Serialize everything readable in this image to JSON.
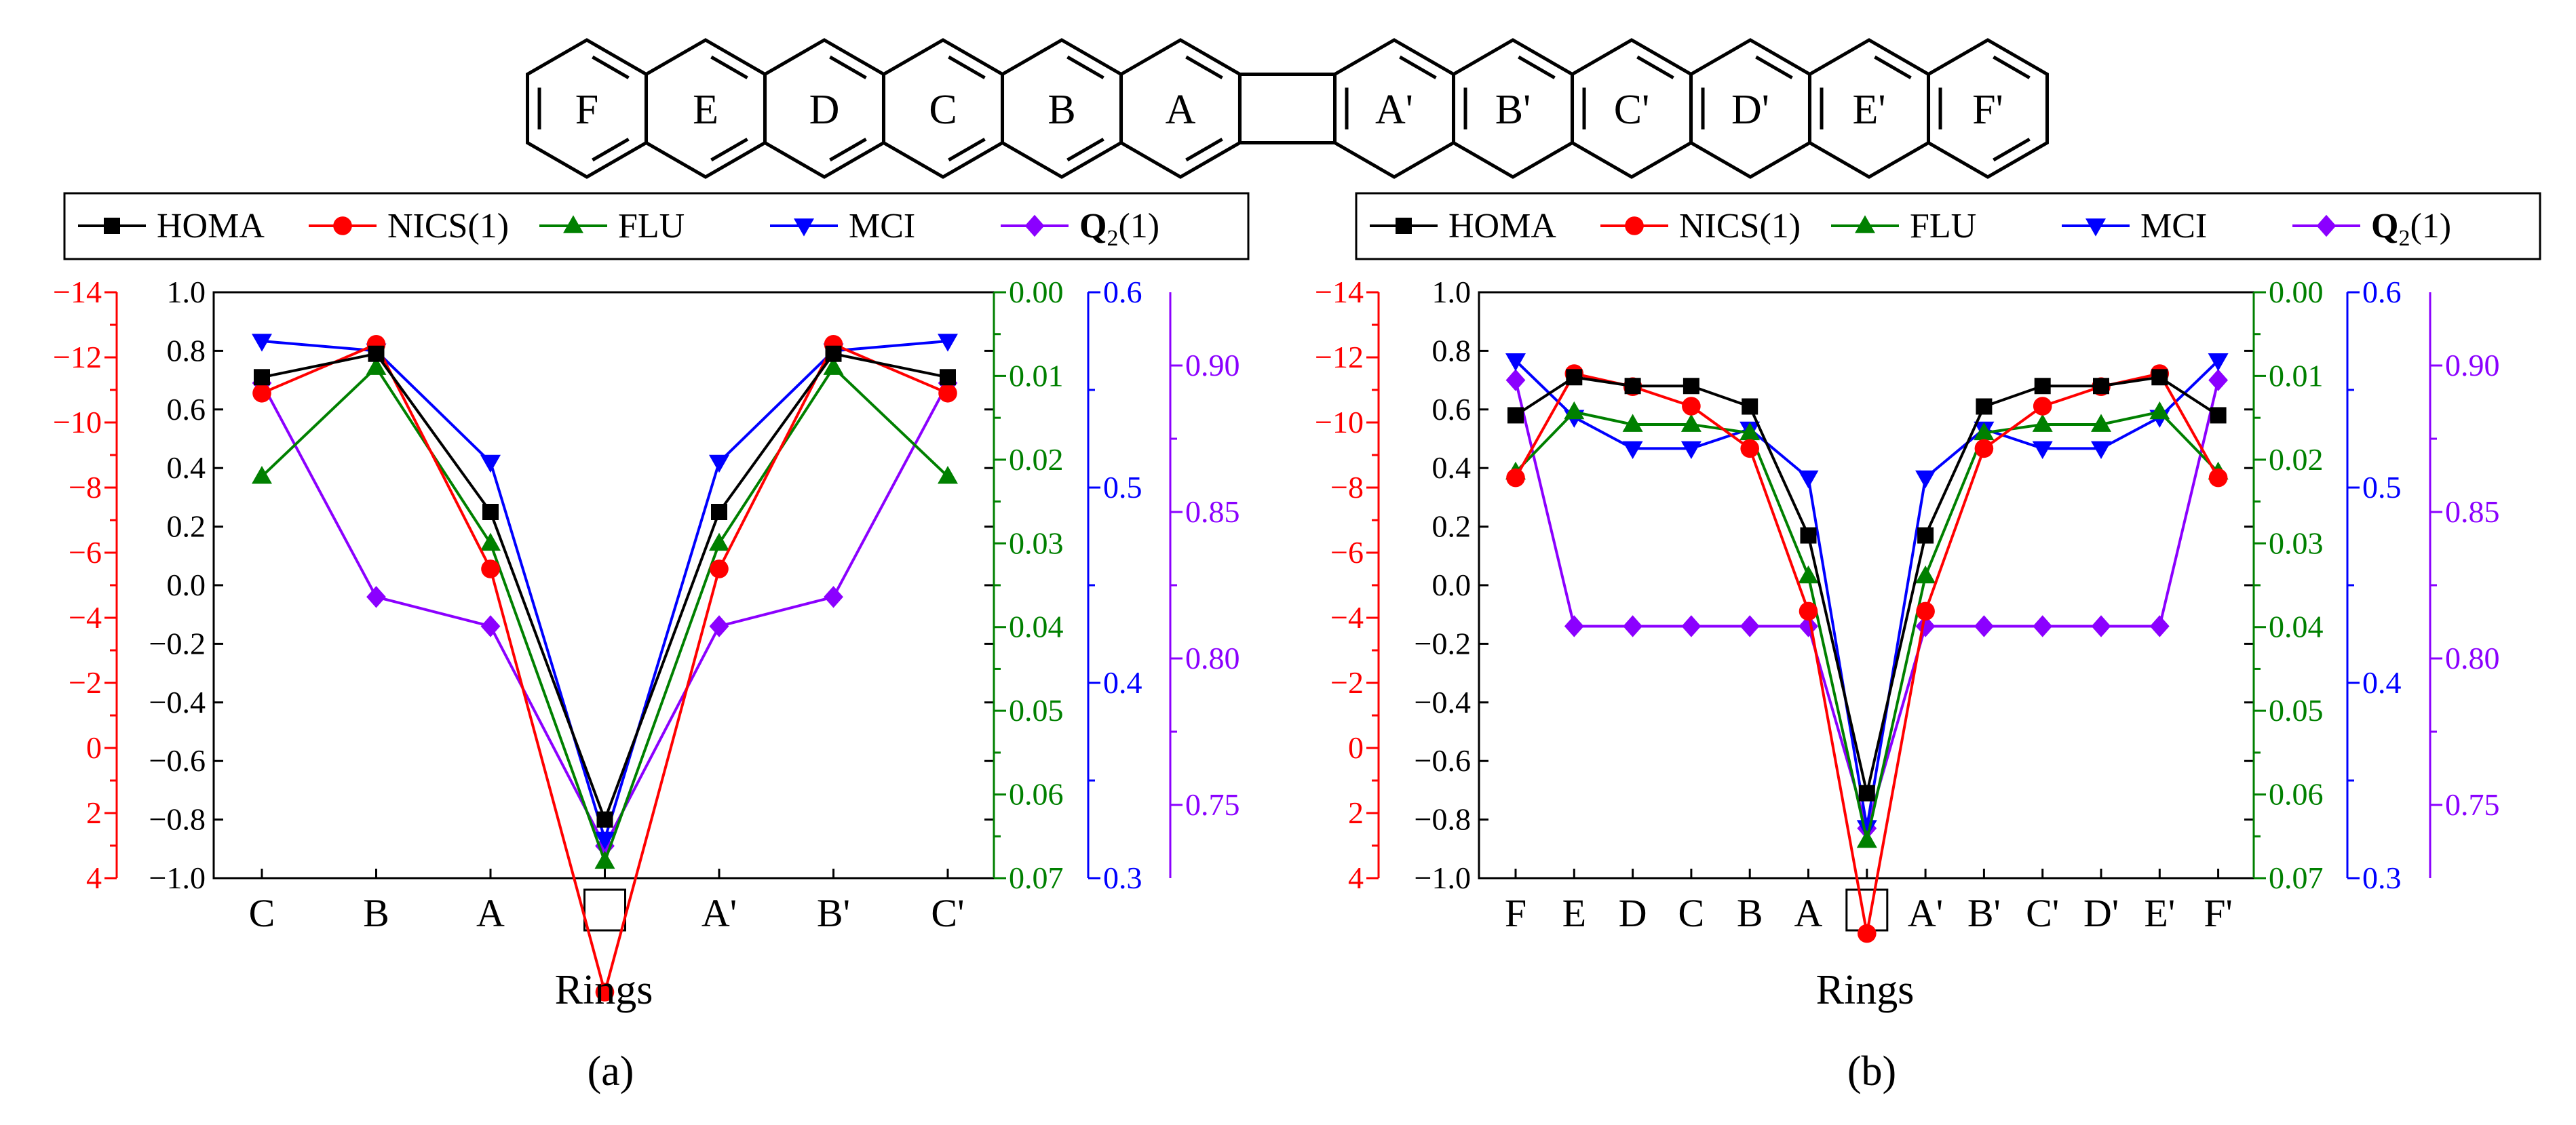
{
  "molecule": {
    "rings_left": [
      "F",
      "E",
      "D",
      "C",
      "B",
      "A"
    ],
    "rings_right": [
      "A'",
      "B'",
      "C'",
      "D'",
      "E'",
      "F'"
    ]
  },
  "colors": {
    "HOMA": "#000000",
    "NICS(1)": "#ff0000",
    "FLU": "#008000",
    "MCI": "#0000ff",
    "Q2(1)": "#8b00ff"
  },
  "legend_items": [
    {
      "key": "HOMA",
      "label": "HOMA",
      "marker": "square"
    },
    {
      "key": "NICS(1)",
      "label": "NICS(1)",
      "marker": "circle"
    },
    {
      "key": "FLU",
      "label": "FLU",
      "marker": "triangle-up"
    },
    {
      "key": "MCI",
      "label": "MCI",
      "marker": "triangle-down"
    },
    {
      "key": "Q2(1)",
      "label": "Q",
      "sub": "2",
      "suffix": "(1)",
      "marker": "diamond"
    }
  ],
  "chart_data": [
    {
      "type": "line",
      "panel_label": "(a)",
      "xlabel": "Rings",
      "categories": [
        "C",
        "B",
        "A",
        "□",
        "A'",
        "B'",
        "C'"
      ],
      "axes": {
        "NICS(1)": {
          "range": [
            4,
            -14
          ],
          "ticks": [
            "4",
            "2",
            "0",
            "−2",
            "−4",
            "−6",
            "−8",
            "−10",
            "−12",
            "−14"
          ]
        },
        "HOMA": {
          "range": [
            -1.0,
            1.0
          ],
          "ticks": [
            "−1.0",
            "−0.8",
            "−0.6",
            "−0.4",
            "−0.2",
            "0.0",
            "0.2",
            "0.4",
            "0.6",
            "0.8",
            "1.0"
          ]
        },
        "FLU": {
          "range": [
            0.07,
            0.0
          ],
          "ticks": [
            "0.07",
            "0.06",
            "0.05",
            "0.04",
            "0.03",
            "0.02",
            "0.01",
            "0.00"
          ]
        },
        "MCI": {
          "range": [
            0.3,
            0.6
          ],
          "ticks": [
            "0.3",
            "0.4",
            "0.5",
            "0.6"
          ]
        },
        "Q2(1)": {
          "range": [
            0.725,
            0.925
          ],
          "ticks": [
            "0.75",
            "0.80",
            "0.85",
            "0.90"
          ]
        }
      },
      "series": [
        {
          "name": "HOMA",
          "values": [
            0.71,
            0.79,
            0.25,
            -0.8,
            0.25,
            0.79,
            0.71
          ]
        },
        {
          "name": "NICS(1)",
          "values": [
            -10.9,
            -12.4,
            -5.5,
            7.5,
            -5.5,
            -12.4,
            -10.9
          ]
        },
        {
          "name": "FLU",
          "values": [
            0.022,
            0.009,
            0.03,
            0.068,
            0.03,
            0.009,
            0.022
          ]
        },
        {
          "name": "MCI",
          "values": [
            0.575,
            0.57,
            0.513,
            0.32,
            0.513,
            0.57,
            0.575
          ]
        },
        {
          "name": "Q2(1)",
          "values": [
            0.894,
            0.821,
            0.811,
            0.736,
            0.811,
            0.821,
            0.894
          ]
        }
      ]
    },
    {
      "type": "line",
      "panel_label": "(b)",
      "xlabel": "Rings",
      "categories": [
        "F",
        "E",
        "D",
        "C",
        "B",
        "A",
        "□",
        "A'",
        "B'",
        "C'",
        "D'",
        "E'",
        "F'"
      ],
      "axes": {
        "NICS(1)": {
          "range": [
            4,
            -14
          ],
          "ticks": [
            "4",
            "2",
            "0",
            "−2",
            "−4",
            "−6",
            "−8",
            "−10",
            "−12",
            "−14"
          ]
        },
        "HOMA": {
          "range": [
            -1.0,
            1.0
          ],
          "ticks": [
            "−1.0",
            "−0.8",
            "−0.6",
            "−0.4",
            "−0.2",
            "0.0",
            "0.2",
            "0.4",
            "0.6",
            "0.8",
            "1.0"
          ]
        },
        "FLU": {
          "range": [
            0.07,
            0.0
          ],
          "ticks": [
            "0.07",
            "0.06",
            "0.05",
            "0.04",
            "0.03",
            "0.02",
            "0.01",
            "0.00"
          ]
        },
        "MCI": {
          "range": [
            0.3,
            0.6
          ],
          "ticks": [
            "0.3",
            "0.4",
            "0.5",
            "0.6"
          ]
        },
        "Q2(1)": {
          "range": [
            0.725,
            0.925
          ],
          "ticks": [
            "0.75",
            "0.80",
            "0.85",
            "0.90"
          ]
        }
      },
      "series": [
        {
          "name": "HOMA",
          "values": [
            0.58,
            0.71,
            0.68,
            0.68,
            0.61,
            0.17,
            -0.71,
            0.17,
            0.61,
            0.68,
            0.68,
            0.71,
            0.58
          ]
        },
        {
          "name": "NICS(1)",
          "values": [
            -8.3,
            -11.5,
            -11.1,
            -10.5,
            -9.2,
            -4.2,
            5.7,
            -4.2,
            -9.2,
            -10.5,
            -11.1,
            -11.5,
            -8.3
          ]
        },
        {
          "name": "FLU",
          "values": [
            0.0215,
            0.0143,
            0.0158,
            0.0158,
            0.0168,
            0.0339,
            0.0655,
            0.0339,
            0.0168,
            0.0158,
            0.0158,
            0.0143,
            0.0215
          ]
        },
        {
          "name": "MCI",
          "values": [
            0.565,
            0.536,
            0.52,
            0.52,
            0.53,
            0.505,
            0.326,
            0.505,
            0.53,
            0.52,
            0.52,
            0.536,
            0.565
          ]
        },
        {
          "name": "Q2(1)",
          "values": [
            0.895,
            0.811,
            0.811,
            0.811,
            0.811,
            0.811,
            0.742,
            0.811,
            0.811,
            0.811,
            0.811,
            0.811,
            0.895
          ]
        }
      ]
    }
  ]
}
